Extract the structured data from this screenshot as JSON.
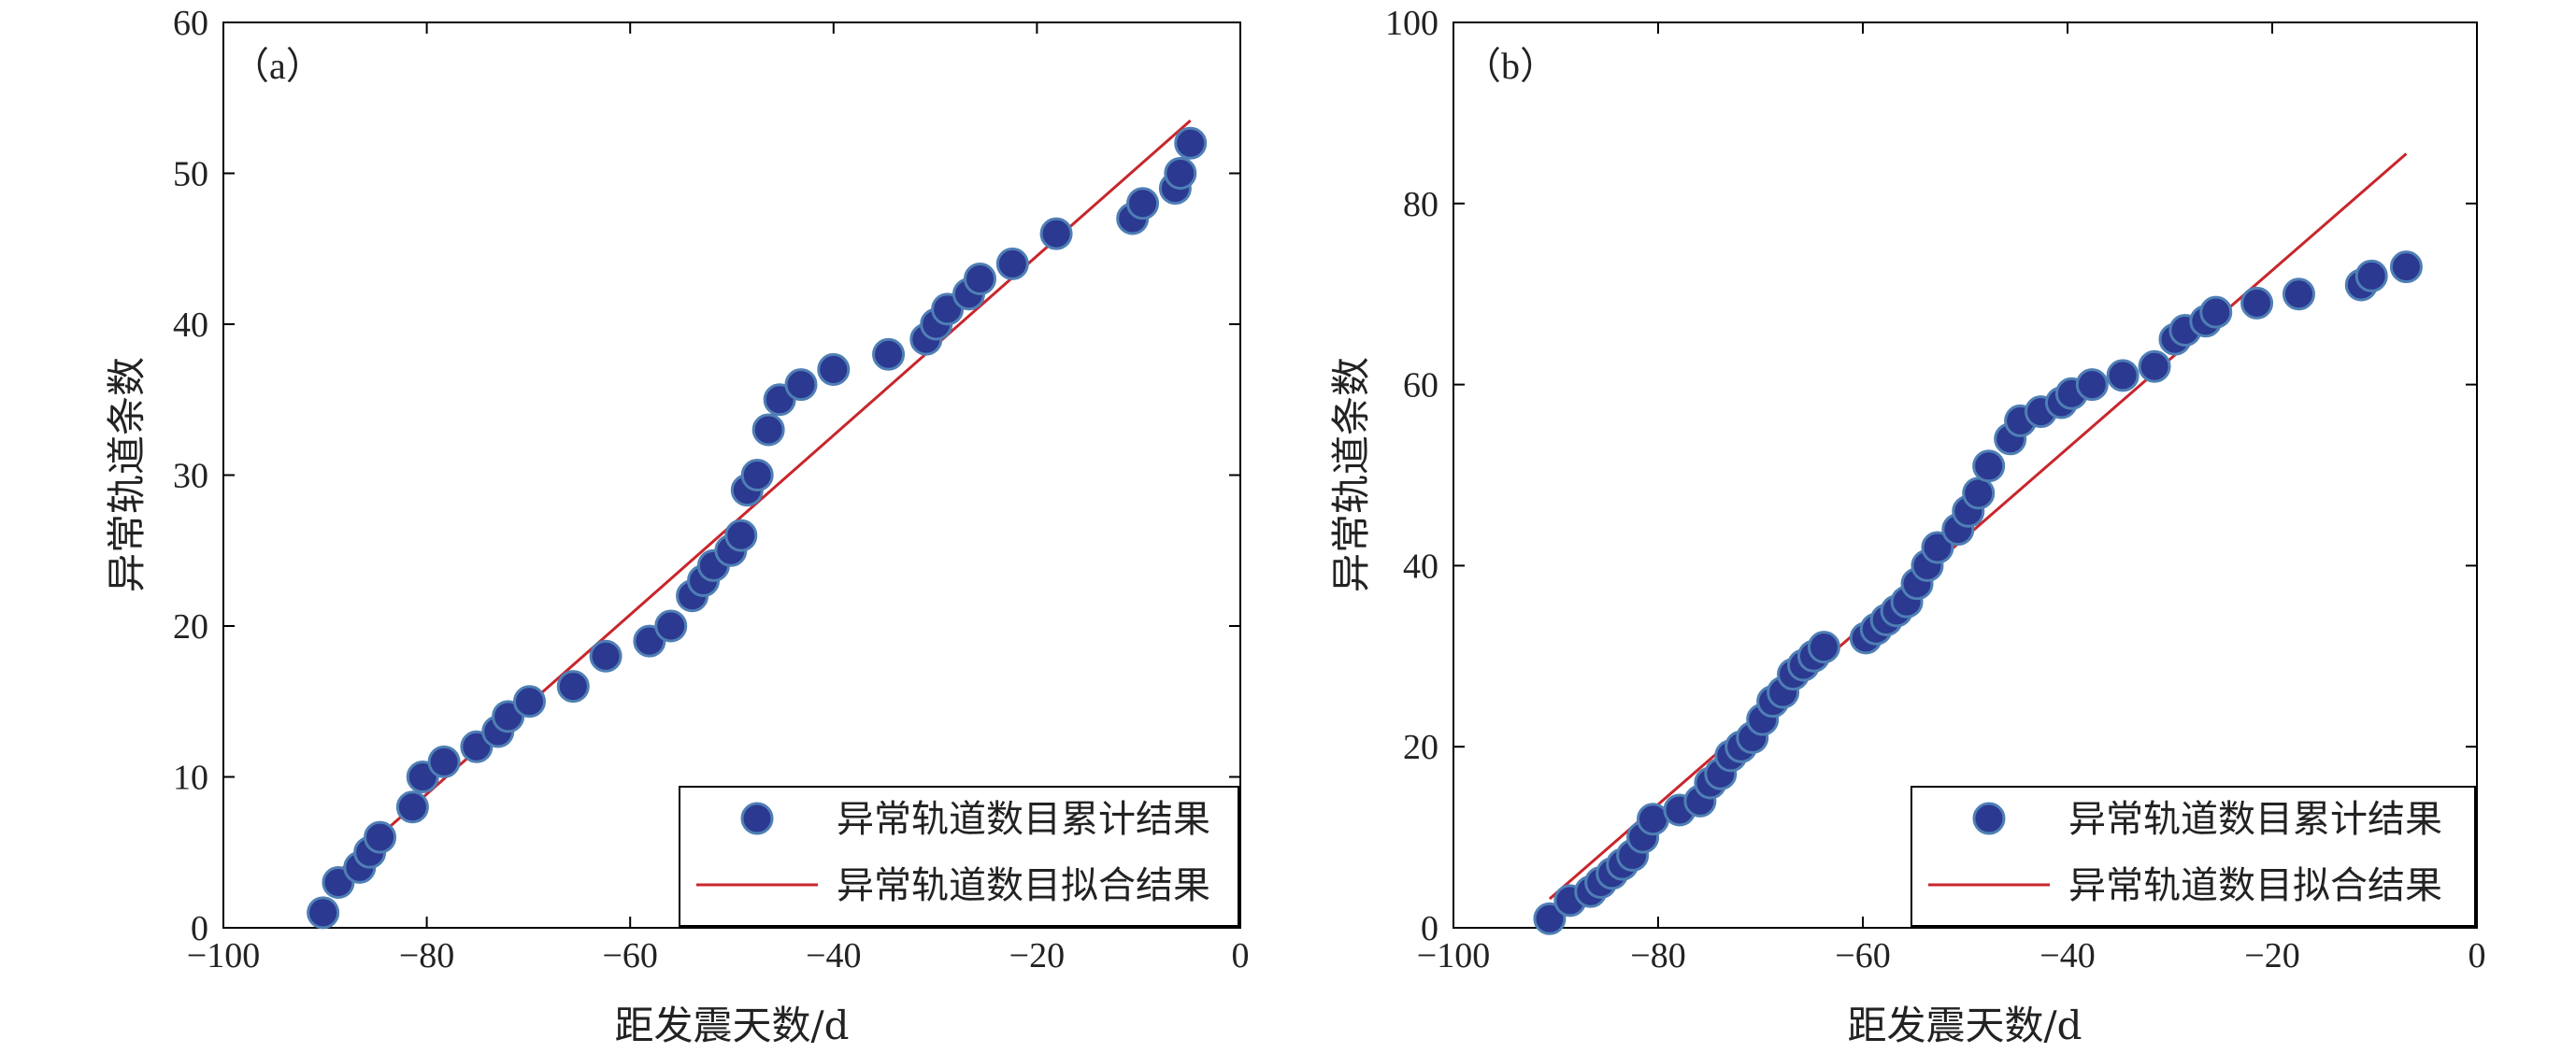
{
  "colors": {
    "points_fill": "#2b3990",
    "points_stroke": "#4f7fb5",
    "fit_line": "#c8262c"
  },
  "chart_data": [
    {
      "type": "scatter",
      "panel_label": "（a）",
      "xlabel": "距发震天数/d",
      "ylabel": "异常轨道条数",
      "xlim": [
        -100,
        0
      ],
      "ylim": [
        0,
        60
      ],
      "xticks": [
        -100,
        -80,
        -60,
        -40,
        -20,
        0
      ],
      "xtick_labels": [
        "−100",
        "−80",
        "−60",
        "−40",
        "−20",
        "0"
      ],
      "yticks": [
        0,
        10,
        20,
        30,
        40,
        50,
        60
      ],
      "ytick_labels": [
        "0",
        "10",
        "20",
        "30",
        "40",
        "50",
        "60"
      ],
      "legend": {
        "position": "bottom-right",
        "entries": [
          "异常轨道数目累计结果",
          "异常轨道数目拟合结果"
        ]
      },
      "series": [
        {
          "name": "异常轨道数目累计结果",
          "kind": "points",
          "points": [
            [
              -90.2,
              1
            ],
            [
              -88.7,
              3
            ],
            [
              -86.6,
              4
            ],
            [
              -85.6,
              5
            ],
            [
              -84.6,
              6
            ],
            [
              -81.4,
              8
            ],
            [
              -80.4,
              10
            ],
            [
              -78.3,
              11
            ],
            [
              -75.1,
              12
            ],
            [
              -73.0,
              13
            ],
            [
              -72.0,
              14
            ],
            [
              -69.9,
              15
            ],
            [
              -65.6,
              16
            ],
            [
              -62.4,
              18
            ],
            [
              -58.1,
              19
            ],
            [
              -56.0,
              20
            ],
            [
              -53.9,
              22
            ],
            [
              -52.8,
              23
            ],
            [
              -51.8,
              24
            ],
            [
              -50.1,
              25
            ],
            [
              -49.1,
              26
            ],
            [
              -48.5,
              29
            ],
            [
              -47.5,
              30
            ],
            [
              -46.4,
              33
            ],
            [
              -45.3,
              35
            ],
            [
              -43.2,
              36
            ],
            [
              -40.0,
              37
            ],
            [
              -34.6,
              38
            ],
            [
              -30.9,
              39
            ],
            [
              -29.9,
              40
            ],
            [
              -28.8,
              41
            ],
            [
              -26.7,
              42
            ],
            [
              -25.6,
              43
            ],
            [
              -22.4,
              44
            ],
            [
              -18.1,
              46
            ],
            [
              -10.6,
              47
            ],
            [
              -9.6,
              48
            ],
            [
              -6.4,
              49
            ],
            [
              -5.9,
              50
            ],
            [
              -4.9,
              52
            ]
          ]
        },
        {
          "name": "异常轨道数目拟合结果",
          "kind": "line",
          "points": [
            [
              -90.2,
              2.8
            ],
            [
              -4.9,
              53.5
            ]
          ]
        }
      ]
    },
    {
      "type": "scatter",
      "panel_label": "（b）",
      "xlabel": "距发震天数/d",
      "ylabel": "异常轨道条数",
      "xlim": [
        -100,
        0
      ],
      "ylim": [
        0,
        100
      ],
      "xticks": [
        -100,
        -80,
        -60,
        -40,
        -20,
        0
      ],
      "xtick_labels": [
        "−100",
        "−80",
        "−60",
        "−40",
        "−20",
        "0"
      ],
      "yticks": [
        0,
        20,
        40,
        60,
        80,
        100
      ],
      "ytick_labels": [
        "0",
        "20",
        "40",
        "60",
        "80",
        "100"
      ],
      "legend": {
        "position": "bottom-right",
        "entries": [
          "异常轨道数目累计结果",
          "异常轨道数目拟合结果"
        ]
      },
      "series": [
        {
          "name": "异常轨道数目累计结果",
          "kind": "points",
          "points": [
            [
              -90.6,
              1
            ],
            [
              -88.6,
              3
            ],
            [
              -86.6,
              4
            ],
            [
              -85.6,
              5
            ],
            [
              -84.5,
              6
            ],
            [
              -83.5,
              7
            ],
            [
              -82.5,
              8
            ],
            [
              -81.5,
              10
            ],
            [
              -80.5,
              12
            ],
            [
              -77.9,
              13
            ],
            [
              -75.9,
              14
            ],
            [
              -74.9,
              16
            ],
            [
              -73.9,
              17
            ],
            [
              -72.9,
              19
            ],
            [
              -71.9,
              20
            ],
            [
              -70.8,
              21
            ],
            [
              -69.8,
              23
            ],
            [
              -68.8,
              25
            ],
            [
              -67.8,
              26
            ],
            [
              -66.8,
              28
            ],
            [
              -65.8,
              29
            ],
            [
              -64.8,
              30
            ],
            [
              -63.8,
              31
            ],
            [
              -59.7,
              32
            ],
            [
              -58.7,
              33
            ],
            [
              -57.7,
              34
            ],
            [
              -56.7,
              35
            ],
            [
              -55.7,
              36
            ],
            [
              -54.7,
              38
            ],
            [
              -53.7,
              40
            ],
            [
              -52.7,
              42
            ],
            [
              -50.7,
              44
            ],
            [
              -49.7,
              46
            ],
            [
              -48.7,
              48
            ],
            [
              -47.7,
              51
            ],
            [
              -45.6,
              54
            ],
            [
              -44.6,
              56
            ],
            [
              -42.6,
              57
            ],
            [
              -40.6,
              58
            ],
            [
              -39.6,
              59
            ],
            [
              -37.6,
              60
            ],
            [
              -34.6,
              61
            ],
            [
              -31.5,
              62
            ],
            [
              -29.5,
              65
            ],
            [
              -28.5,
              66
            ],
            [
              -26.5,
              67
            ],
            [
              -25.5,
              68
            ],
            [
              -21.5,
              69
            ],
            [
              -17.4,
              70
            ],
            [
              -11.3,
              71
            ],
            [
              -10.3,
              72
            ],
            [
              -6.9,
              73
            ]
          ]
        },
        {
          "name": "异常轨道数目拟合结果",
          "kind": "line",
          "points": [
            [
              -90.6,
              3.2
            ],
            [
              -6.9,
              85.5
            ]
          ]
        }
      ]
    }
  ]
}
